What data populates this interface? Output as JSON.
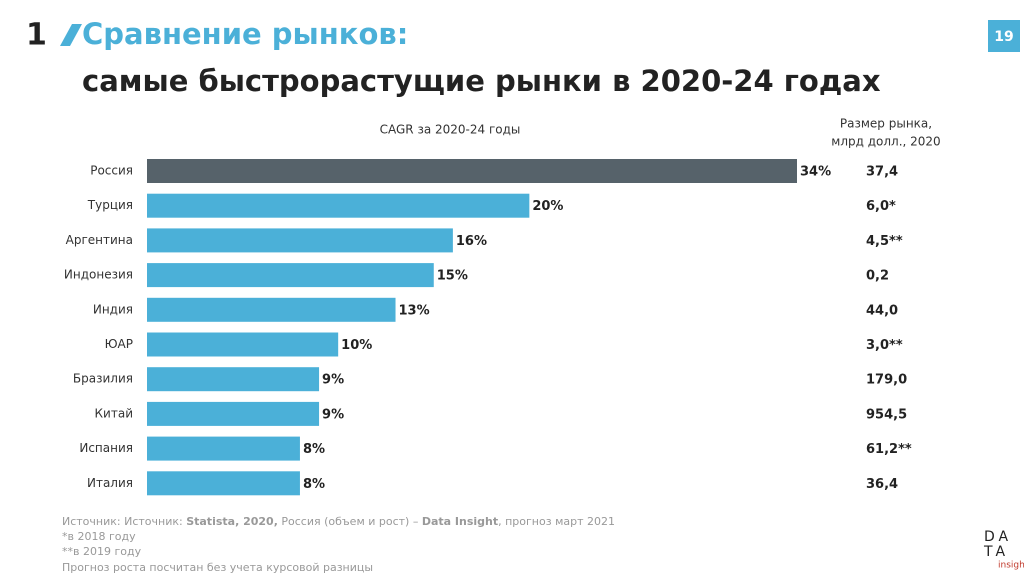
{
  "slide_number": "1",
  "page": "19",
  "header": {
    "title": "Сравнение рынков:",
    "subtitle": "самые быстрорастущие рынки в 2020-24 годах"
  },
  "chart_data": {
    "type": "bar",
    "orientation": "horizontal",
    "title": "CAGR за 2020-24 годы",
    "categories": [
      "Россия",
      "Турция",
      "Аргентина",
      "Индонезия",
      "Индия",
      "ЮАР",
      "Бразилия",
      "Китай",
      "Испания",
      "Италия"
    ],
    "values": [
      34,
      20,
      16,
      15,
      13,
      10,
      9,
      9,
      8,
      8
    ],
    "value_labels": [
      "34%",
      "20%",
      "16%",
      "15%",
      "13%",
      "10%",
      "9%",
      "9%",
      "8%",
      "8%"
    ],
    "colors": [
      "#56626a",
      "#4bb0d8",
      "#4bb0d8",
      "#4bb0d8",
      "#4bb0d8",
      "#4bb0d8",
      "#4bb0d8",
      "#4bb0d8",
      "#4bb0d8",
      "#4bb0d8"
    ],
    "xlim": [
      0,
      34
    ],
    "market_size_header": [
      "Размер рынка,",
      "млрд долл., 2020"
    ],
    "market_size": [
      "37,4",
      "6,0*",
      "4,5**",
      "0,2",
      "44,0",
      "3,0**",
      "179,0",
      "954,5",
      "61,2**",
      "36,4"
    ]
  },
  "footnotes": {
    "source": [
      "Источник: Источник: ",
      "Statista, 2020,",
      " Россия (объем и рост) – ",
      "Data Insight",
      ", прогноз март 2021"
    ],
    "notes": [
      "*в 2018 году",
      "**в 2019 году",
      "Прогноз роста посчитан без учета курсовой разницы"
    ]
  },
  "logo": [
    "DA",
    "TA",
    "insight"
  ]
}
